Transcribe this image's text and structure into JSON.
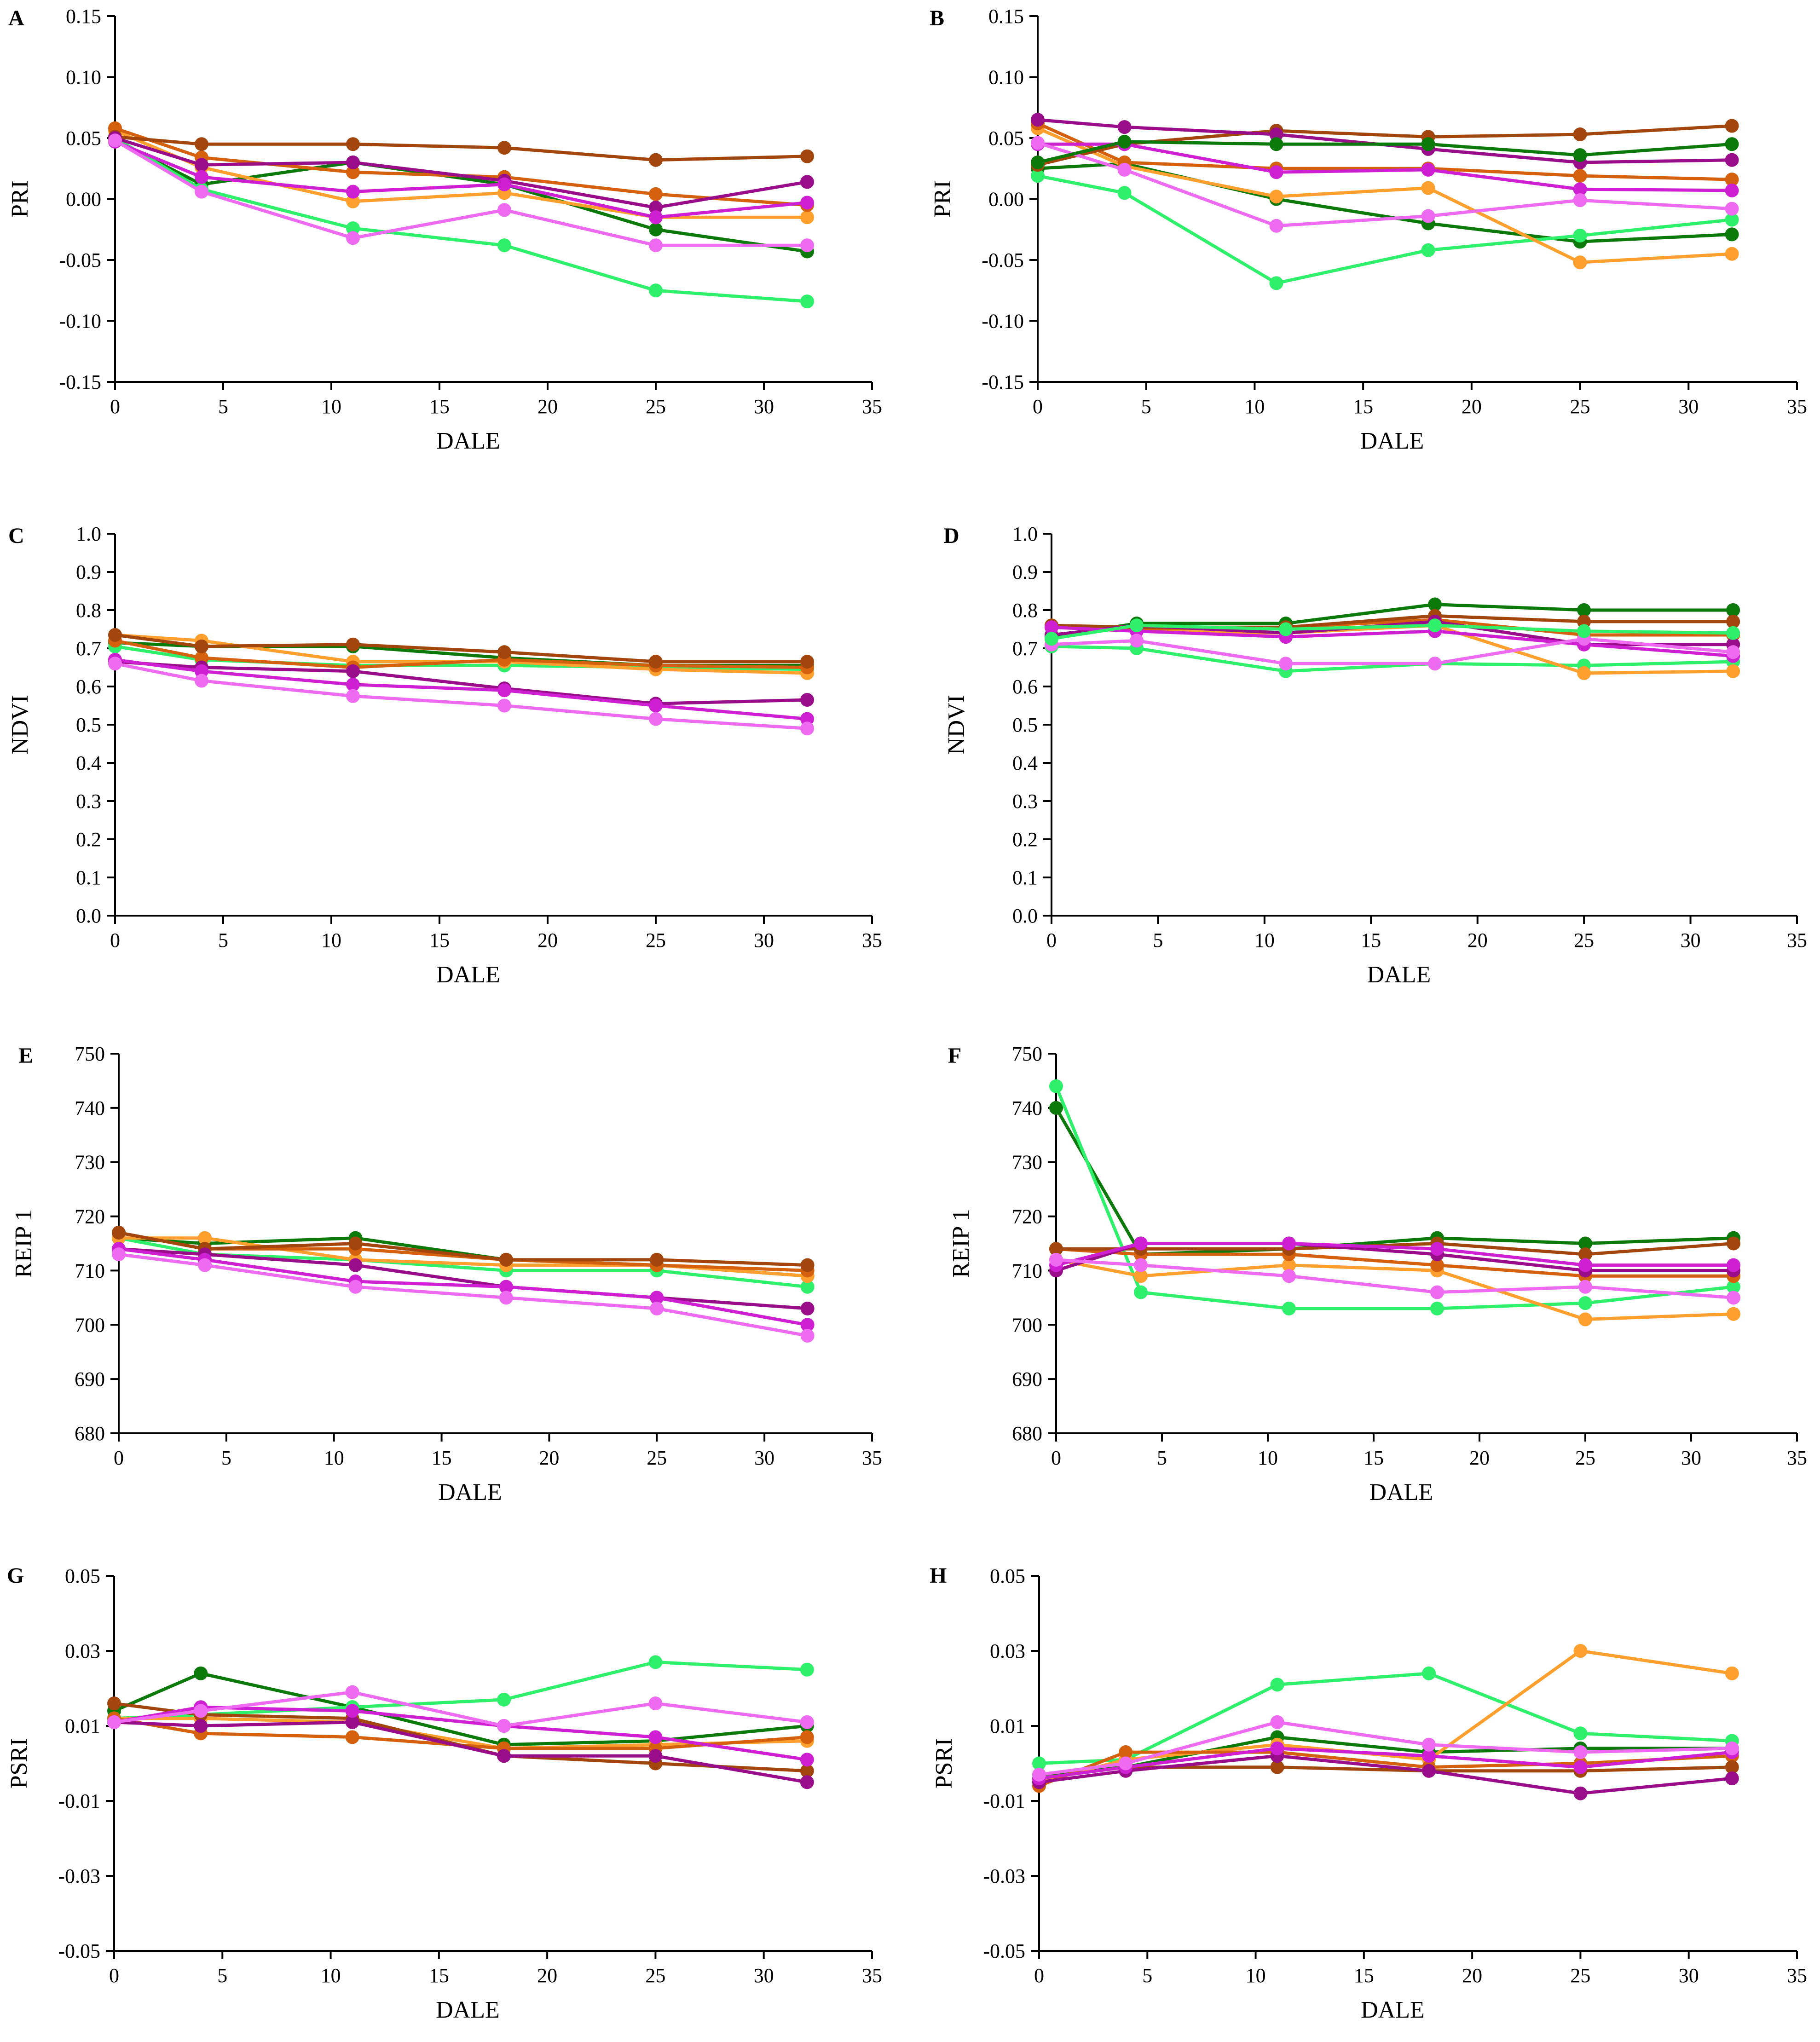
{
  "palette": {
    "dark_green": "#0b7a0b",
    "light_green": "#2ef06a",
    "orange": "#ff9f2e",
    "burnt_orange": "#d5600e",
    "brown": "#a2460e",
    "dark_magenta": "#9a0d8a",
    "magenta": "#cf1fd2",
    "pink": "#ee6af0"
  },
  "chart_data": [
    {
      "type": "line",
      "panel": "A",
      "title": "",
      "xlabel": "DALE",
      "ylabel": "PRI",
      "xlim": [
        0,
        35
      ],
      "ylim": [
        -0.15,
        0.15
      ],
      "xticks": [
        "0",
        "5",
        "10",
        "15",
        "20",
        "25",
        "30",
        "35"
      ],
      "yticks": [
        "-0.15",
        "-0.10",
        "-0.05",
        "0.00",
        "0.05",
        "0.10",
        "0.15"
      ],
      "x": [
        0,
        4,
        11,
        18,
        25,
        32
      ],
      "series": [
        {
          "color": "dark_green",
          "values": [
            0.048,
            0.012,
            0.03,
            0.012,
            -0.025,
            -0.043
          ]
        },
        {
          "color": "light_green",
          "values": [
            0.05,
            0.008,
            -0.024,
            -0.038,
            -0.075,
            -0.084
          ]
        },
        {
          "color": "orange",
          "values": [
            0.056,
            0.026,
            -0.002,
            0.005,
            -0.015,
            -0.015
          ]
        },
        {
          "color": "burnt_orange",
          "values": [
            0.058,
            0.034,
            0.022,
            0.018,
            0.004,
            -0.005
          ]
        },
        {
          "color": "brown",
          "values": [
            0.051,
            0.045,
            0.045,
            0.042,
            0.032,
            0.035
          ]
        },
        {
          "color": "dark_magenta",
          "values": [
            0.05,
            0.028,
            0.03,
            0.015,
            -0.007,
            0.014
          ]
        },
        {
          "color": "magenta",
          "values": [
            0.047,
            0.018,
            0.006,
            0.012,
            -0.015,
            -0.003
          ]
        },
        {
          "color": "pink",
          "values": [
            0.048,
            0.006,
            -0.032,
            -0.009,
            -0.038,
            -0.038
          ]
        }
      ]
    },
    {
      "type": "line",
      "panel": "B",
      "title": "",
      "xlabel": "DALE",
      "ylabel": "PRI",
      "xlim": [
        0,
        35
      ],
      "ylim": [
        -0.15,
        0.15
      ],
      "xticks": [
        "0",
        "5",
        "10",
        "15",
        "20",
        "25",
        "30",
        "35"
      ],
      "yticks": [
        "-0.15",
        "-0.10",
        "-0.05",
        "0.00",
        "0.05",
        "0.10",
        "0.15"
      ],
      "x": [
        0,
        4,
        11,
        18,
        25,
        32
      ],
      "series": [
        {
          "color": "dark_green",
          "values": [
            0.025,
            0.029,
            0.0,
            -0.02,
            -0.035,
            -0.029
          ]
        },
        {
          "color": "light_green",
          "values": [
            0.019,
            0.005,
            -0.069,
            -0.042,
            -0.03,
            -0.017
          ]
        },
        {
          "color": "orange",
          "values": [
            0.058,
            0.027,
            0.002,
            0.009,
            -0.052,
            -0.045
          ]
        },
        {
          "color": "burnt_orange",
          "values": [
            0.062,
            0.03,
            0.025,
            0.025,
            0.019,
            0.016
          ]
        },
        {
          "color": "brown",
          "values": [
            0.028,
            0.045,
            0.056,
            0.051,
            0.053,
            0.06
          ]
        },
        {
          "color": "dark_magenta",
          "values": [
            0.065,
            0.059,
            0.053,
            0.041,
            0.03,
            0.032
          ]
        },
        {
          "color": "magenta",
          "values": [
            0.045,
            0.045,
            0.022,
            0.024,
            0.008,
            0.007
          ]
        },
        {
          "color": "pink",
          "values": [
            0.046,
            0.024,
            -0.022,
            -0.014,
            -0.001,
            -0.008
          ]
        },
        {
          "color": "dark_green",
          "values": [
            0.03,
            0.047,
            0.045,
            0.045,
            0.036,
            0.045
          ]
        }
      ]
    },
    {
      "type": "line",
      "panel": "C",
      "title": "",
      "xlabel": "DALE",
      "ylabel": "NDVI",
      "xlim": [
        0,
        35
      ],
      "ylim": [
        0.0,
        1.0
      ],
      "xticks": [
        "0",
        "5",
        "10",
        "15",
        "20",
        "25",
        "30",
        "35"
      ],
      "yticks": [
        "0.0",
        "0.1",
        "0.2",
        "0.3",
        "0.4",
        "0.5",
        "0.6",
        "0.7",
        "0.8",
        "0.9",
        "1.0"
      ],
      "x": [
        0,
        4,
        11,
        18,
        25,
        32
      ],
      "series": [
        {
          "color": "dark_green",
          "values": [
            0.715,
            0.705,
            0.705,
            0.675,
            0.655,
            0.655
          ]
        },
        {
          "color": "light_green",
          "values": [
            0.705,
            0.67,
            0.655,
            0.655,
            0.65,
            0.645
          ]
        },
        {
          "color": "orange",
          "values": [
            0.735,
            0.72,
            0.665,
            0.665,
            0.645,
            0.635
          ]
        },
        {
          "color": "burnt_orange",
          "values": [
            0.72,
            0.675,
            0.65,
            0.67,
            0.655,
            0.65
          ]
        },
        {
          "color": "brown",
          "values": [
            0.735,
            0.705,
            0.71,
            0.69,
            0.665,
            0.665
          ]
        },
        {
          "color": "dark_magenta",
          "values": [
            0.665,
            0.65,
            0.64,
            0.595,
            0.555,
            0.565
          ]
        },
        {
          "color": "magenta",
          "values": [
            0.67,
            0.64,
            0.605,
            0.59,
            0.55,
            0.515
          ]
        },
        {
          "color": "pink",
          "values": [
            0.66,
            0.615,
            0.575,
            0.55,
            0.515,
            0.49
          ]
        }
      ]
    },
    {
      "type": "line",
      "panel": "D",
      "title": "",
      "xlabel": "DALE",
      "ylabel": "NDVI",
      "xlim": [
        0,
        35
      ],
      "ylim": [
        0.0,
        1.0
      ],
      "xticks": [
        "0",
        "5",
        "10",
        "15",
        "20",
        "25",
        "30",
        "35"
      ],
      "yticks": [
        "0.0",
        "0.1",
        "0.2",
        "0.3",
        "0.4",
        "0.5",
        "0.6",
        "0.7",
        "0.8",
        "0.9",
        "1.0"
      ],
      "x": [
        0,
        4,
        11,
        18,
        25,
        32
      ],
      "series": [
        {
          "color": "dark_green",
          "values": [
            0.73,
            0.765,
            0.765,
            0.815,
            0.8,
            0.8
          ]
        },
        {
          "color": "light_green",
          "values": [
            0.705,
            0.7,
            0.64,
            0.66,
            0.655,
            0.665
          ]
        },
        {
          "color": "orange",
          "values": [
            0.76,
            0.745,
            0.74,
            0.76,
            0.635,
            0.64
          ]
        },
        {
          "color": "burnt_orange",
          "values": [
            0.755,
            0.75,
            0.755,
            0.775,
            0.735,
            0.735
          ]
        },
        {
          "color": "brown",
          "values": [
            0.76,
            0.755,
            0.755,
            0.785,
            0.77,
            0.77
          ]
        },
        {
          "color": "dark_magenta",
          "values": [
            0.735,
            0.76,
            0.74,
            0.77,
            0.71,
            0.71
          ]
        },
        {
          "color": "magenta",
          "values": [
            0.755,
            0.745,
            0.73,
            0.745,
            0.71,
            0.68
          ]
        },
        {
          "color": "pink",
          "values": [
            0.71,
            0.72,
            0.66,
            0.66,
            0.725,
            0.69
          ]
        },
        {
          "color": "light_green",
          "values": [
            0.725,
            0.76,
            0.75,
            0.76,
            0.745,
            0.74
          ]
        }
      ]
    },
    {
      "type": "line",
      "panel": "E",
      "title": "",
      "xlabel": "DALE",
      "ylabel": "REIP 1",
      "xlim": [
        0,
        35
      ],
      "ylim": [
        680,
        750
      ],
      "xticks": [
        "0",
        "5",
        "10",
        "15",
        "20",
        "25",
        "30",
        "35"
      ],
      "yticks": [
        "680",
        "690",
        "700",
        "710",
        "720",
        "730",
        "740",
        "750"
      ],
      "x": [
        0,
        4,
        11,
        18,
        25,
        32
      ],
      "series": [
        {
          "color": "dark_green",
          "values": [
            716,
            715,
            716,
            712,
            711,
            709
          ]
        },
        {
          "color": "light_green",
          "values": [
            716,
            713,
            712,
            710,
            710,
            707
          ]
        },
        {
          "color": "orange",
          "values": [
            716,
            716,
            712,
            711,
            711,
            709
          ]
        },
        {
          "color": "burnt_orange",
          "values": [
            717,
            714,
            714,
            712,
            711,
            710
          ]
        },
        {
          "color": "brown",
          "values": [
            717,
            714,
            715,
            712,
            712,
            711
          ]
        },
        {
          "color": "dark_magenta",
          "values": [
            714,
            713,
            711,
            707,
            705,
            703
          ]
        },
        {
          "color": "magenta",
          "values": [
            714,
            712,
            708,
            707,
            705,
            700
          ]
        },
        {
          "color": "pink",
          "values": [
            713,
            711,
            707,
            705,
            703,
            698
          ]
        }
      ]
    },
    {
      "type": "line",
      "panel": "F",
      "title": "",
      "xlabel": "DALE",
      "ylabel": "REIP 1",
      "xlim": [
        0,
        35
      ],
      "ylim": [
        680,
        750
      ],
      "xticks": [
        "0",
        "5",
        "10",
        "15",
        "20",
        "25",
        "30",
        "35"
      ],
      "yticks": [
        "680",
        "690",
        "700",
        "710",
        "720",
        "730",
        "740",
        "750"
      ],
      "x": [
        0,
        4,
        11,
        18,
        25,
        32
      ],
      "series": [
        {
          "color": "dark_green",
          "values": [
            740,
            713,
            714,
            716,
            715,
            716
          ]
        },
        {
          "color": "light_green",
          "values": [
            744,
            706,
            703,
            703,
            704,
            707
          ]
        },
        {
          "color": "orange",
          "values": [
            712,
            709,
            711,
            710,
            701,
            702
          ]
        },
        {
          "color": "burnt_orange",
          "values": [
            714,
            713,
            713,
            711,
            709,
            709
          ]
        },
        {
          "color": "brown",
          "values": [
            714,
            714,
            714,
            715,
            713,
            715
          ]
        },
        {
          "color": "dark_magenta",
          "values": [
            710,
            715,
            715,
            713,
            710,
            710
          ]
        },
        {
          "color": "magenta",
          "values": [
            711,
            715,
            715,
            714,
            711,
            711
          ]
        },
        {
          "color": "pink",
          "values": [
            712,
            711,
            709,
            706,
            707,
            705
          ]
        }
      ]
    },
    {
      "type": "line",
      "panel": "G",
      "title": "",
      "xlabel": "DALE",
      "ylabel": "PSRI",
      "xlim": [
        0,
        35
      ],
      "ylim": [
        -0.05,
        0.05
      ],
      "xticks": [
        "0",
        "5",
        "10",
        "15",
        "20",
        "25",
        "30",
        "35"
      ],
      "yticks": [
        "-0.05",
        "-0.03",
        "-0.01",
        "0.01",
        "0.03",
        "0.05"
      ],
      "x": [
        0,
        4,
        11,
        18,
        25,
        32
      ],
      "series": [
        {
          "color": "dark_green",
          "values": [
            0.014,
            0.024,
            0.015,
            0.005,
            0.006,
            0.01
          ]
        },
        {
          "color": "light_green",
          "values": [
            0.012,
            0.013,
            0.015,
            0.017,
            0.027,
            0.025
          ]
        },
        {
          "color": "orange",
          "values": [
            0.012,
            0.012,
            0.011,
            0.004,
            0.005,
            0.006
          ]
        },
        {
          "color": "burnt_orange",
          "values": [
            0.012,
            0.008,
            0.007,
            0.004,
            0.004,
            0.007
          ]
        },
        {
          "color": "brown",
          "values": [
            0.016,
            0.013,
            0.012,
            0.002,
            0.0,
            -0.002
          ]
        },
        {
          "color": "dark_magenta",
          "values": [
            0.011,
            0.01,
            0.011,
            0.002,
            0.002,
            -0.005
          ]
        },
        {
          "color": "magenta",
          "values": [
            0.011,
            0.015,
            0.014,
            0.01,
            0.007,
            0.001
          ]
        },
        {
          "color": "pink",
          "values": [
            0.011,
            0.014,
            0.019,
            0.01,
            0.016,
            0.011
          ]
        }
      ]
    },
    {
      "type": "line",
      "panel": "H",
      "title": "",
      "xlabel": "DALE",
      "ylabel": "PSRI",
      "xlim": [
        0,
        35
      ],
      "ylim": [
        -0.05,
        0.05
      ],
      "xticks": [
        "0",
        "5",
        "10",
        "15",
        "20",
        "25",
        "30",
        "35"
      ],
      "yticks": [
        "-0.05",
        "-0.03",
        "-0.01",
        "0.01",
        "0.03",
        "0.05"
      ],
      "x": [
        0,
        4,
        11,
        18,
        25,
        32
      ],
      "series": [
        {
          "color": "dark_green",
          "values": [
            -0.003,
            -0.001,
            0.007,
            0.003,
            0.004,
            0.004
          ]
        },
        {
          "color": "light_green",
          "values": [
            0.0,
            0.001,
            0.021,
            0.024,
            0.008,
            0.006
          ]
        },
        {
          "color": "orange",
          "values": [
            -0.005,
            0.001,
            0.005,
            0.001,
            0.03,
            0.024
          ]
        },
        {
          "color": "burnt_orange",
          "values": [
            -0.006,
            0.003,
            0.003,
            -0.001,
            0.0,
            0.002
          ]
        },
        {
          "color": "brown",
          "values": [
            -0.004,
            -0.001,
            -0.001,
            -0.002,
            -0.002,
            -0.001
          ]
        },
        {
          "color": "dark_magenta",
          "values": [
            -0.005,
            -0.002,
            0.002,
            -0.002,
            -0.008,
            -0.004
          ]
        },
        {
          "color": "magenta",
          "values": [
            -0.004,
            -0.001,
            0.004,
            0.002,
            -0.001,
            0.003
          ]
        },
        {
          "color": "pink",
          "values": [
            -0.003,
            0.0,
            0.011,
            0.005,
            0.003,
            0.004
          ]
        }
      ]
    }
  ]
}
